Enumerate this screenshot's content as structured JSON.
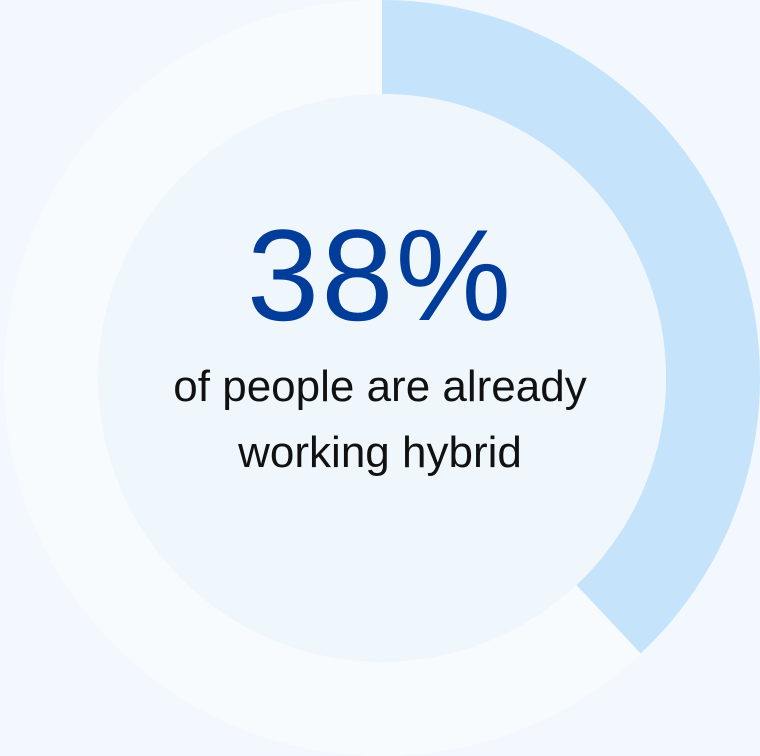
{
  "chart_data": {
    "type": "pie",
    "variant": "donut",
    "value_percent": 38,
    "value_label": "38%",
    "caption_lines": [
      "of people are already",
      "working hybrid"
    ],
    "colors": {
      "background": "#f2f8fd",
      "ring_track": "#f8fbfe",
      "ring_fill": "#c5e3fb",
      "inner_disc": "#f0f7fc",
      "value_text": "#003d9a",
      "caption_text": "#111111"
    }
  }
}
